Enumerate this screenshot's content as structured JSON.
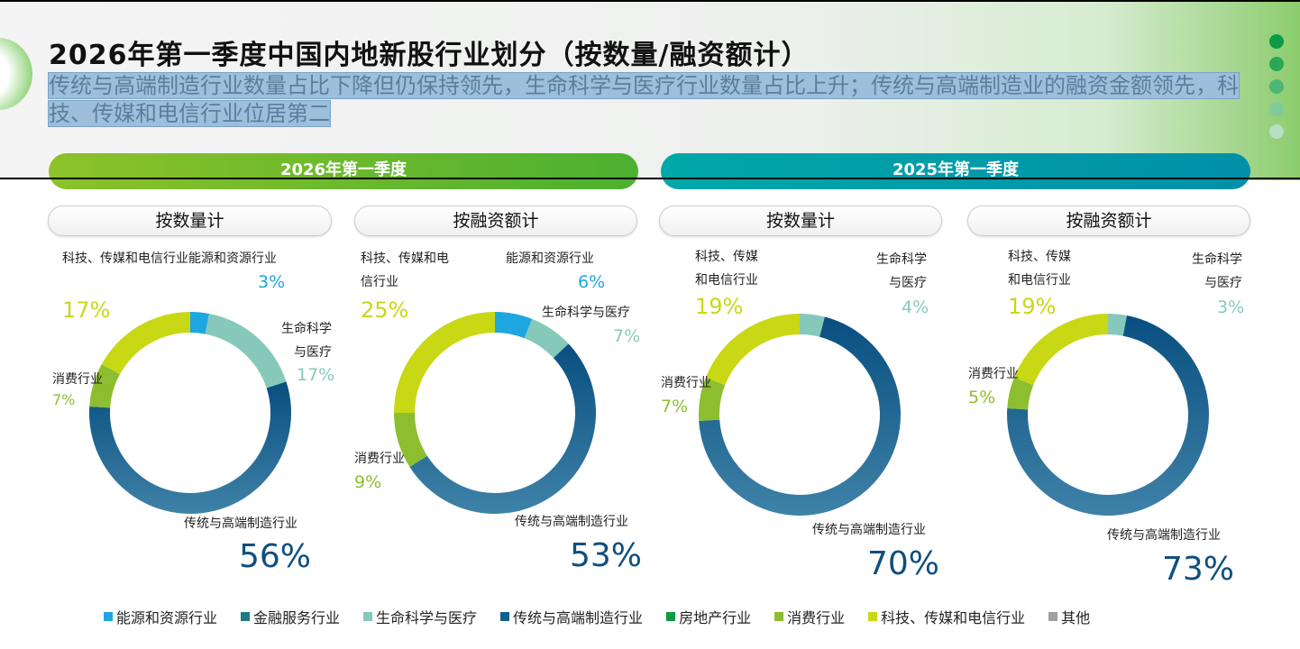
{
  "title": "2026年第一季度中国内地新股行业划分（按数量/融资额计）",
  "subtitle": "传统与高端制造行业数量占比下降但仍保持领先，生命科学与医疗行业数量占比上升；传统与高端制造业的融资金额领先，科技、传媒和电信行业位居第二",
  "periods": [
    {
      "label": "2026年第一季度",
      "color": "#5cb82a"
    },
    {
      "label": "2025年第一季度",
      "color": "#00a0a8"
    }
  ],
  "colors": {
    "energy": "#1ea6e0",
    "finance": "#1b7c86",
    "life": "#86c9bb",
    "manufacturing": "#135f8e",
    "realestate": "#0a9a45",
    "consumer": "#8dbe2f",
    "tech": "#c8d814",
    "other": "#a0a0a0"
  },
  "legend": [
    {
      "key": "energy",
      "label": "能源和资源行业"
    },
    {
      "key": "finance",
      "label": "金融服务行业"
    },
    {
      "key": "life",
      "label": "生命科学与医疗"
    },
    {
      "key": "manufacturing",
      "label": "传统与高端制造行业"
    },
    {
      "key": "realestate",
      "label": "房地产行业"
    },
    {
      "key": "consumer",
      "label": "消费行业"
    },
    {
      "key": "tech",
      "label": "科技、传媒和电信行业"
    },
    {
      "key": "other",
      "label": "其他"
    }
  ],
  "chart_data": [
    {
      "type": "pie",
      "donut": true,
      "period": "2026年第一季度",
      "title": "按数量计",
      "slices": [
        {
          "key": "energy",
          "label": "能源和资源行业",
          "value": 3,
          "text": "3%"
        },
        {
          "key": "life",
          "label": "生命科学与医疗",
          "value": 17,
          "text": "17%"
        },
        {
          "key": "manufacturing",
          "label": "传统与高端制造行业",
          "value": 56,
          "text": "56%"
        },
        {
          "key": "consumer",
          "label": "消费行业",
          "value": 7,
          "text": "7%"
        },
        {
          "key": "tech",
          "label": "科技、传媒和电信行业",
          "value": 17,
          "text": "17%"
        }
      ]
    },
    {
      "type": "pie",
      "donut": true,
      "period": "2026年第一季度",
      "title": "按融资额计",
      "slices": [
        {
          "key": "energy",
          "label": "能源和资源行业",
          "value": 6,
          "text": "6%"
        },
        {
          "key": "life",
          "label": "生命科学与医疗",
          "value": 7,
          "text": "7%"
        },
        {
          "key": "manufacturing",
          "label": "传统与高端制造行业",
          "value": 53,
          "text": "53%"
        },
        {
          "key": "consumer",
          "label": "消费行业",
          "value": 9,
          "text": "9%"
        },
        {
          "key": "tech",
          "label": "科技、传媒和电信行业",
          "value": 25,
          "text": "25%"
        }
      ]
    },
    {
      "type": "pie",
      "donut": true,
      "period": "2025年第一季度",
      "title": "按数量计",
      "slices": [
        {
          "key": "life",
          "label": "生命科学与医疗",
          "value": 4,
          "text": "4%"
        },
        {
          "key": "manufacturing",
          "label": "传统与高端制造行业",
          "value": 70,
          "text": "70%"
        },
        {
          "key": "consumer",
          "label": "消费行业",
          "value": 7,
          "text": "7%"
        },
        {
          "key": "tech",
          "label": "科技、传媒和电信行业",
          "value": 19,
          "text": "19%"
        }
      ]
    },
    {
      "type": "pie",
      "donut": true,
      "period": "2025年第一季度",
      "title": "按融资额计",
      "slices": [
        {
          "key": "life",
          "label": "生命科学与医疗",
          "value": 3,
          "text": "3%"
        },
        {
          "key": "manufacturing",
          "label": "传统与高端制造行业",
          "value": 73,
          "text": "73%"
        },
        {
          "key": "consumer",
          "label": "消费行业",
          "value": 5,
          "text": "5%"
        },
        {
          "key": "tech",
          "label": "科技、传媒和电信行业",
          "value": 19,
          "text": "19%"
        }
      ]
    }
  ]
}
